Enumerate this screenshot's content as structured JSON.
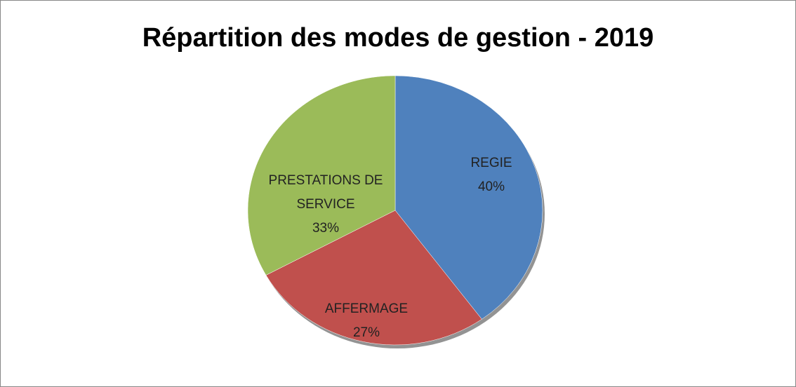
{
  "chart_data": {
    "type": "pie",
    "title": "Répartition des modes de gestion - 2019",
    "categories": [
      "REGIE",
      "AFFERMAGE",
      "PRESTATIONS DE SERVICE"
    ],
    "values": [
      40,
      27,
      33
    ],
    "value_labels": [
      "40%",
      "27%",
      "33%"
    ],
    "colors": [
      "#4f81bd",
      "#c0504d",
      "#9bbb59"
    ]
  }
}
